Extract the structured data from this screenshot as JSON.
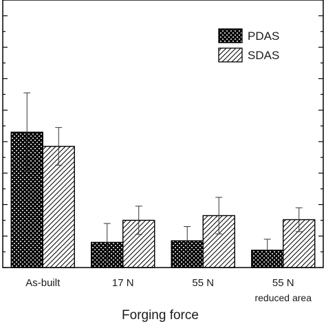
{
  "chart_data": {
    "type": "bar",
    "title": "",
    "xlabel": "Forging force",
    "ylabel": "",
    "ylim": [
      0,
      8.5
    ],
    "categories": [
      {
        "line1": "As-built",
        "line2": ""
      },
      {
        "line1": "17 N",
        "line2": ""
      },
      {
        "line1": "55 N",
        "line2": ""
      },
      {
        "line1": "55 N",
        "line2": "reduced area"
      }
    ],
    "series": [
      {
        "name": "PDAS",
        "pattern": "crosshatch",
        "values": [
          4.3,
          0.8,
          0.85,
          0.55
        ],
        "errors": [
          1.25,
          0.6,
          0.45,
          0.35
        ]
      },
      {
        "name": "SDAS",
        "pattern": "diagonal",
        "values": [
          3.85,
          1.5,
          1.65,
          1.52
        ],
        "errors": [
          0.6,
          0.45,
          0.58,
          0.38
        ]
      }
    ],
    "legend_position": "top-right",
    "grid": false,
    "colors": {
      "bar_fill": "#ffffff",
      "bar_stroke": "#000000",
      "hatch": "#000000",
      "error": "#333333"
    }
  }
}
